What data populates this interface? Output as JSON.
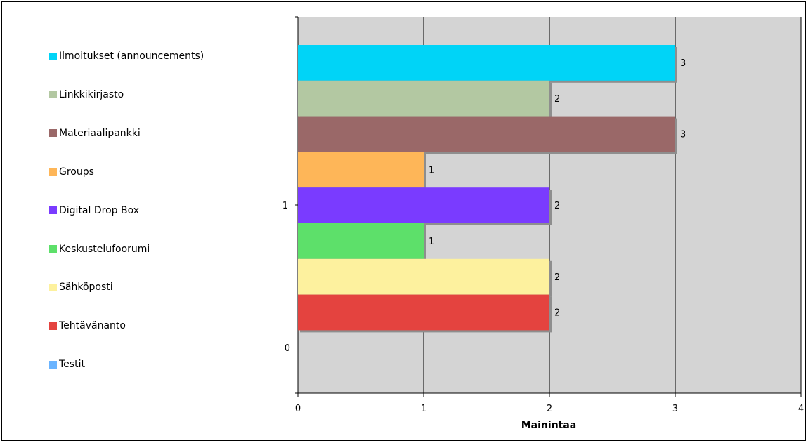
{
  "chart_data": {
    "type": "bar",
    "orientation": "horizontal",
    "xlabel": "Mainintaa",
    "ylabel": "",
    "xlim": [
      0,
      4
    ],
    "x_ticks": [
      "0",
      "1",
      "2",
      "3",
      "4"
    ],
    "y_tick_labels": [
      "0",
      "1"
    ],
    "grid": true,
    "legend_position": "left",
    "plot_background": "#d4d4d4",
    "series": [
      {
        "name": "Ilmoitukset (announcements)",
        "value": 3,
        "label": "3",
        "color": "#00d4f7"
      },
      {
        "name": "Linkkikirjasto",
        "value": 2,
        "label": "2",
        "color": "#b3c8a2"
      },
      {
        "name": "Materiaalipankki",
        "value": 3,
        "label": "3",
        "color": "#9a6868"
      },
      {
        "name": "Groups",
        "value": 1,
        "label": "1",
        "color": "#feb658"
      },
      {
        "name": "Digital Drop Box",
        "value": 2,
        "label": "2",
        "color": "#7a3bff"
      },
      {
        "name": "Keskustelufoorumi",
        "value": 1,
        "label": "1",
        "color": "#5de06a"
      },
      {
        "name": "Sähköposti",
        "value": 2,
        "label": "2",
        "color": "#fdf19e"
      },
      {
        "name": "Tehtävänanto",
        "value": 2,
        "label": "2",
        "color": "#e4433f"
      },
      {
        "name": "Testit",
        "value": 0,
        "label": "",
        "color": "#6ab4ff"
      }
    ]
  }
}
